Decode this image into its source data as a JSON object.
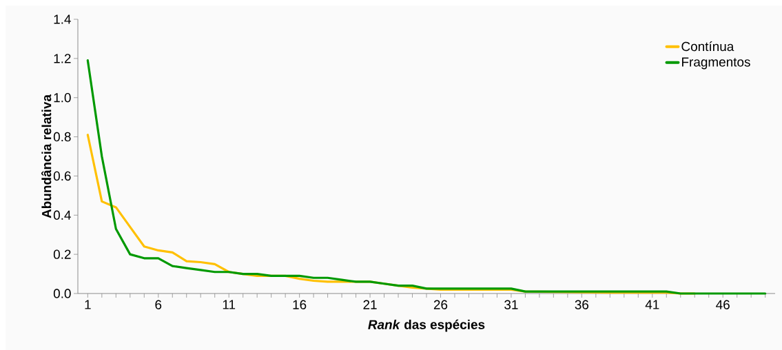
{
  "chart_data": {
    "type": "line",
    "xlabel": "*Rank* das espécies",
    "ylabel": "Abundância relativa",
    "categories": [
      "1",
      null,
      null,
      null,
      null,
      "6",
      null,
      null,
      null,
      null,
      "11",
      null,
      null,
      null,
      null,
      "16",
      null,
      null,
      null,
      null,
      "21",
      null,
      null,
      null,
      null,
      "26",
      null,
      null,
      null,
      null,
      "31",
      null,
      null,
      null,
      null,
      "36",
      null,
      null,
      null,
      null,
      "41",
      null,
      null,
      null,
      null,
      "46",
      null,
      null,
      null
    ],
    "ylim": [
      0,
      1.4
    ],
    "yticks": [
      {
        "value": 0,
        "label": "0.0"
      },
      {
        "value": 0.2,
        "label": "0.2"
      },
      {
        "value": 0.4,
        "label": "0.4"
      },
      {
        "value": 0.6,
        "label": "0.6"
      },
      {
        "value": 0.8,
        "label": "0.8"
      },
      {
        "value": 1.0,
        "label": "1.0"
      },
      {
        "value": 1.2,
        "label": "1.2"
      },
      {
        "value": 1.4,
        "label": "1.4"
      }
    ],
    "legend": "top right",
    "series": [
      {
        "name": "Contínua",
        "color": "#ffc000",
        "values": [
          0.81,
          0.47,
          0.44,
          0.34,
          0.24,
          0.22,
          0.21,
          0.165,
          0.16,
          0.15,
          0.11,
          0.1,
          0.09,
          0.09,
          0.09,
          0.075,
          0.065,
          0.06,
          0.06,
          0.06,
          0.06,
          0.05,
          0.04,
          0.03,
          0.025,
          0.02,
          0.02,
          0.02,
          0.02,
          0.02,
          0.02,
          0.01,
          null,
          null,
          null,
          null,
          null,
          0.005,
          0.005,
          0.005,
          0.005,
          0.005,
          0,
          0,
          null,
          null,
          null,
          null,
          null
        ]
      },
      {
        "name": "Fragmentos",
        "color": "#009900",
        "values": [
          1.19,
          0.7,
          0.33,
          0.2,
          0.18,
          0.18,
          0.14,
          0.13,
          0.12,
          0.11,
          0.11,
          0.1,
          0.1,
          0.09,
          0.09,
          0.09,
          0.08,
          0.08,
          0.07,
          0.06,
          0.06,
          0.05,
          0.04,
          0.04,
          0.025,
          0.025,
          0.025,
          0.025,
          0.025,
          0.025,
          0.025,
          0.01,
          0.01,
          0.01,
          0.01,
          0.01,
          0.01,
          0.01,
          0.01,
          0.01,
          0.01,
          0.01,
          0,
          0,
          0,
          0,
          0,
          0,
          0
        ]
      }
    ]
  }
}
